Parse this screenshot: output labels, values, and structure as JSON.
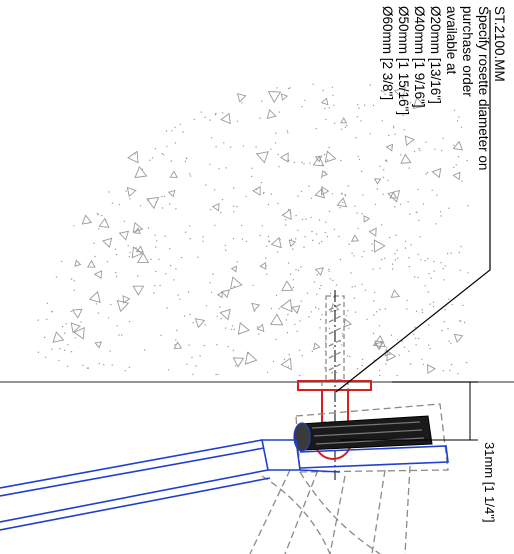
{
  "drawing": {
    "note_lines": [
      "ST.2100.MM",
      "Specify rosette diameter on",
      "purchase order",
      "available at",
      "Ø20mm [13/16\"]",
      "Ø40mm [1 9/16\"]",
      "Ø50mm [1 15/16\"]",
      "Ø60mm [2 3/8\"]"
    ],
    "dimension_label": "31mm [1 1/4\"]",
    "colors": {
      "line": "#000000",
      "rosette": "#d62020",
      "bracket": "#1f3fd0",
      "hidden": "#8a8a8a",
      "aggregate": "#9a9a9a"
    }
  }
}
